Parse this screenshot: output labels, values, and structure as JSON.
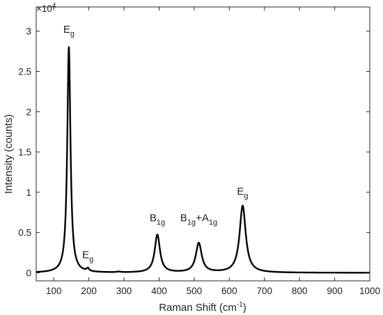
{
  "chart_data": {
    "type": "line",
    "title": "",
    "xlabel": "Raman Shift (cm",
    "xlabel_sup": "-1",
    "xlabel_tail": ")",
    "ylabel": "Intensity (counts)",
    "exponent_base": "×10",
    "exponent_power": "4",
    "xlim": [
      50,
      1000
    ],
    "ylim": [
      -1000,
      33000
    ],
    "grid": false,
    "legend": "none",
    "line_color": "#000000",
    "x_ticks": [
      100,
      200,
      300,
      400,
      500,
      600,
      700,
      800,
      900,
      1000
    ],
    "x_tick_labels": [
      "100",
      "200",
      "300",
      "400",
      "500",
      "600",
      "700",
      "800",
      "900",
      "1000"
    ],
    "y_ticks": [
      0,
      5000,
      10000,
      15000,
      20000,
      25000,
      30000
    ],
    "y_tick_labels": [
      "0",
      "0.5",
      "1",
      "1.5",
      "2",
      "2.5",
      "3"
    ],
    "peaks": [
      {
        "center": 143,
        "height": 28000,
        "width": 5.5
      },
      {
        "center": 197,
        "height": 350,
        "width": 4
      },
      {
        "center": 285,
        "height": 80,
        "width": 6
      },
      {
        "center": 395,
        "height": 4700,
        "width": 9
      },
      {
        "center": 513,
        "height": 3650,
        "width": 10
      },
      {
        "center": 638,
        "height": 8300,
        "width": 10.5
      }
    ],
    "annotations": [
      {
        "main": "E",
        "sub": "g",
        "x": 143,
        "y": 29800
      },
      {
        "main": "E",
        "sub": "g",
        "x": 197,
        "y": 1800
      },
      {
        "main": "B",
        "sub": "1g",
        "x": 395,
        "y": 6400
      },
      {
        "main": "B",
        "sub": "1g",
        "main2": "+A",
        "sub2": "1g",
        "x": 513,
        "y": 6400
      },
      {
        "main": "E",
        "sub": "g",
        "x": 638,
        "y": 9700
      }
    ]
  }
}
